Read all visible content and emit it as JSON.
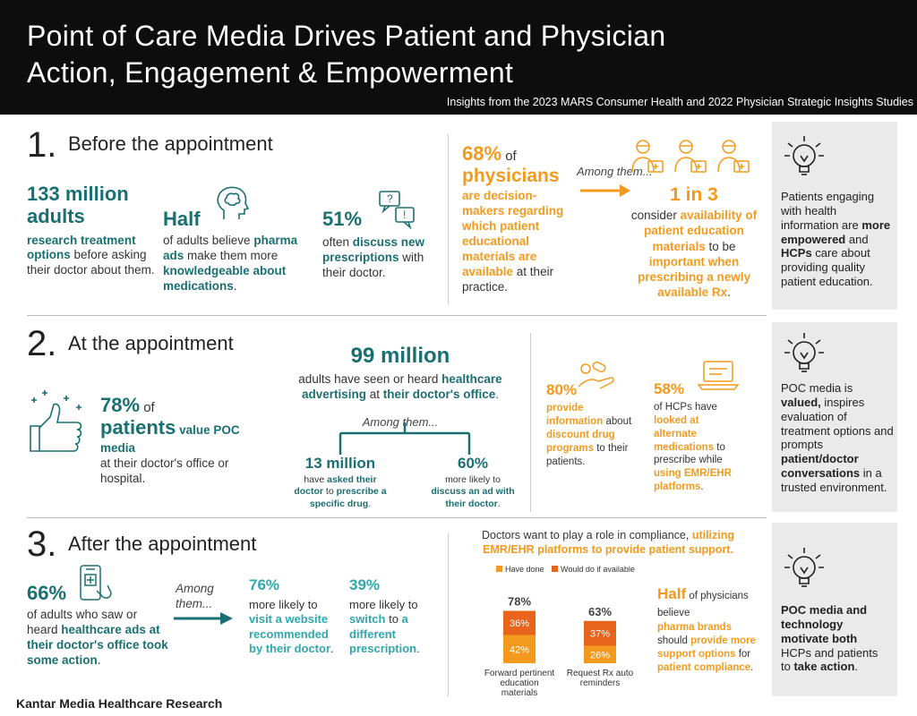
{
  "header": {
    "title_line1": "Point of Care Media Drives Patient and Physician",
    "title_line2": "Action, Engagement & Empowerment",
    "subtitle": "Insights from the  2023 MARS Consumer Health and  2022 Physician Strategic Insights Studies"
  },
  "s1": {
    "num": "1.",
    "heading": "Before the appointment",
    "stat1": {
      "big": "133 million adults",
      "t1": "research treatment options",
      "t2": " before asking their doctor about them."
    },
    "stat2": {
      "big": "Half",
      "t1": "of adults believe ",
      "t2": "pharma ads",
      "t3": " make them more ",
      "t4": "knowledgeable about medications",
      "t5": "."
    },
    "stat3": {
      "big": "51%",
      "t1": "often ",
      "t2": "discuss new prescriptions",
      "t3": " with their doctor."
    },
    "phys": {
      "pct": "68%",
      "of": " of",
      "phys": "physicians",
      "t1": "are decision-makers regarding which patient educational materials are available",
      "t2": " at their practice."
    },
    "among": "Among them...",
    "onein3": {
      "big": "1 in 3",
      "t1": "consider ",
      "t2": "availability of patient education materials",
      "t3": " to be ",
      "t4": "important when prescribing a newly available Rx",
      "t5": "."
    },
    "box": {
      "t1": "Patients engaging with health information are ",
      "t2": "more empowered",
      "t3": " and ",
      "t4": "HCPs",
      "t5": " care about providing quality patient education."
    }
  },
  "s2": {
    "num": "2.",
    "heading": "At the appointment",
    "stat1": {
      "pct": "78%",
      "of": " of",
      "patients": "patients",
      "t1": " value POC media",
      "t2": " at their doctor's office or hospital."
    },
    "stat2": {
      "big": "99 million",
      "t1": "adults have seen or heard ",
      "t2": "healthcare advertising",
      "t3": " at ",
      "t4": "their doctor's office",
      "t5": ".",
      "among": "Among them...",
      "left": {
        "big": "13 million",
        "t1": "have ",
        "t2": "asked their doctor",
        "t3": " to ",
        "t4": "prescribe a specific drug",
        "t5": "."
      },
      "right": {
        "big": "60%",
        "t1": "more likely to ",
        "t2": "discuss an ad with their doctor",
        "t3": "."
      }
    },
    "stat3": {
      "big": "80%",
      "t1": "provide information",
      "t2": " about ",
      "t3": "discount drug programs",
      "t4": " to their patients."
    },
    "stat4": {
      "big": "58%",
      "t1": " of HCPs have ",
      "t2": "looked at alternate medications",
      "t3": " to prescribe while ",
      "t4": "using EMR/EHR platforms",
      "t5": "."
    },
    "box": {
      "t1": "POC media is ",
      "t2": "valued,",
      "t3": " inspires evaluation of treatment options and prompts ",
      "t4": "patient/doctor conversations",
      "t5": " in a trusted environment."
    }
  },
  "s3": {
    "num": "3.",
    "heading": "After the appointment",
    "stat1": {
      "big": "66%",
      "t1": "of adults who saw or heard ",
      "t2": "healthcare ads at their doctor's office took some action",
      "t3": "."
    },
    "among": "Among them...",
    "stat2": {
      "big": "76%",
      "t1": "more likely to ",
      "t2": "visit a website recommended by their doctor",
      "t3": "."
    },
    "stat3": {
      "big": "39%",
      "t1": "more likely to ",
      "t2": "switch",
      "t3": " to ",
      "t4": "a different prescription",
      "t5": "."
    },
    "chart_title1": "Doctors want to play a role in compliance, ",
    "chart_title2": "utilizing EMR/EHR platforms to provide patient support.",
    "half": {
      "big": "Half",
      "t1": " of physicians believe ",
      "t2": "pharma brands",
      "t3": " should ",
      "t4": "provide more support options",
      "t5": " for ",
      "t6": "patient compliance",
      "t7": "."
    },
    "box": {
      "t1": "POC media and technology motivate both",
      "t2": " HCPs and patients to ",
      "t3": "take action",
      "t4": "."
    }
  },
  "chart_data": {
    "type": "bar",
    "stacked": true,
    "categories": [
      "Forward pertinent education materials",
      "Request Rx auto reminders"
    ],
    "series": [
      {
        "name": "Have done",
        "values": [
          42,
          26
        ],
        "color": "#f39a1e"
      },
      {
        "name": "Would do if available",
        "values": [
          36,
          37
        ],
        "color": "#e8641b"
      }
    ],
    "totals": [
      "78%",
      "63%"
    ],
    "value_labels": [
      [
        "42%",
        "26%"
      ],
      [
        "36%",
        "37%"
      ]
    ],
    "legend": "top-left",
    "grid": false
  },
  "footer": {
    "text": "Kantar Media Healthcare Research"
  },
  "colors": {
    "teal": "#1a6f73",
    "orange": "#f39a1e",
    "dark_orange": "#e8641b",
    "gray_box": "#eaeaea"
  }
}
